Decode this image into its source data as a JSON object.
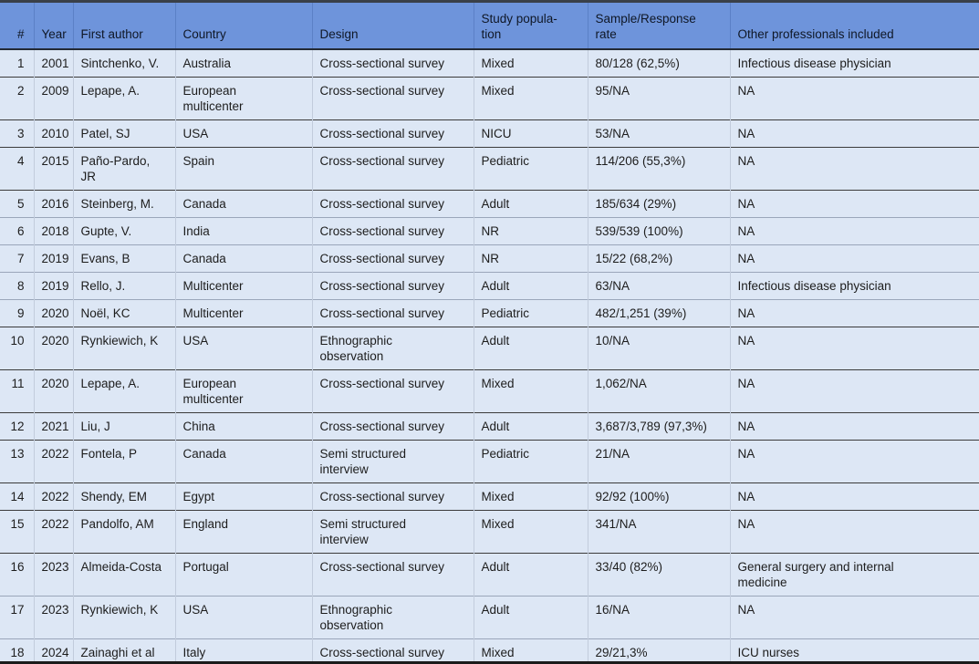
{
  "colors": {
    "header_background": "#6e94db",
    "header_text": "#0f1726",
    "header_column_divider": "#5b80c6",
    "row_background": "#dde7f5",
    "row_divider_dark": "#3b3b3b",
    "row_divider_light": "#9aa6ba",
    "body_column_divider": "#c2ccdc",
    "body_text": "#1d1d1d",
    "table_top_border": "#3a4048",
    "table_bottom_border": "#1b1b1b"
  },
  "table": {
    "columns": [
      {
        "key": "num",
        "label": "#"
      },
      {
        "key": "year",
        "label": "Year"
      },
      {
        "key": "first_author",
        "label": "First author"
      },
      {
        "key": "country",
        "label": "Country"
      },
      {
        "key": "design",
        "label": "Design"
      },
      {
        "key": "study_population",
        "label": "Study popula-\ntion"
      },
      {
        "key": "sample_response_rate",
        "label": "Sample/Response\nrate"
      },
      {
        "key": "other_professionals",
        "label": "Other professionals included"
      }
    ],
    "rows": [
      {
        "sep": "dark",
        "cells": {
          "num": "1",
          "year": "2001",
          "first_author": "Sintchenko, V.",
          "country": "Australia",
          "design": "Cross-sectional survey",
          "study_population": "Mixed",
          "sample_response_rate": "80/128 (62,5%)",
          "other_professionals": "Infectious disease physician"
        }
      },
      {
        "sep": "dark",
        "cells": {
          "num": "2",
          "year": "2009",
          "first_author": "Lepape, A.",
          "country": "European\nmulticenter",
          "design": "Cross-sectional survey",
          "study_population": "Mixed",
          "sample_response_rate": "95/NA",
          "other_professionals": "NA"
        }
      },
      {
        "sep": "dark",
        "cells": {
          "num": "3",
          "year": "2010",
          "first_author": "Patel, SJ",
          "country": "USA",
          "design": "Cross-sectional survey",
          "study_population": "NICU",
          "sample_response_rate": "53/NA",
          "other_professionals": "NA"
        }
      },
      {
        "sep": "dark",
        "cells": {
          "num": "4",
          "year": "2015",
          "first_author": "Paño-Pardo,\nJR",
          "country": "Spain",
          "design": "Cross-sectional survey",
          "study_population": "Pediatric",
          "sample_response_rate": "114/206 (55,3%)",
          "other_professionals": "NA"
        }
      },
      {
        "sep": "dark",
        "cells": {
          "num": "5",
          "year": "2016",
          "first_author": "Steinberg, M.",
          "country": "Canada",
          "design": "Cross-sectional survey",
          "study_population": "Adult",
          "sample_response_rate": "185/634 (29%)",
          "other_professionals": "NA"
        }
      },
      {
        "sep": "light",
        "cells": {
          "num": "6",
          "year": "2018",
          "first_author": "Gupte, V.",
          "country": "India",
          "design": "Cross-sectional survey",
          "study_population": "NR",
          "sample_response_rate": "539/539 (100%)",
          "other_professionals": "NA"
        }
      },
      {
        "sep": "light",
        "cells": {
          "num": "7",
          "year": "2019",
          "first_author": "Evans, B",
          "country": "Canada",
          "design": "Cross-sectional survey",
          "study_population": "NR",
          "sample_response_rate": "15/22 (68,2%)",
          "other_professionals": "NA"
        }
      },
      {
        "sep": "light",
        "cells": {
          "num": "8",
          "year": "2019",
          "first_author": "Rello, J.",
          "country": "Multicenter",
          "design": "Cross-sectional survey",
          "study_population": "Adult",
          "sample_response_rate": "63/NA",
          "other_professionals": "Infectious disease physician"
        }
      },
      {
        "sep": "light",
        "cells": {
          "num": "9",
          "year": "2020",
          "first_author": "Noël, KC",
          "country": "Multicenter",
          "design": "Cross-sectional survey",
          "study_population": "Pediatric",
          "sample_response_rate": "482/1,251 (39%)",
          "other_professionals": "NA"
        }
      },
      {
        "sep": "dark",
        "cells": {
          "num": "10",
          "year": "2020",
          "first_author": "Rynkiewich, K",
          "country": "USA",
          "design": "Ethnographic\nobservation",
          "study_population": "Adult",
          "sample_response_rate": "10/NA",
          "other_professionals": "NA"
        }
      },
      {
        "sep": "dark",
        "cells": {
          "num": "11",
          "year": "2020",
          "first_author": "Lepape, A.",
          "country": "European\nmulticenter",
          "design": "Cross-sectional survey",
          "study_population": "Mixed",
          "sample_response_rate": "1,062/NA",
          "other_professionals": "NA"
        }
      },
      {
        "sep": "dark",
        "cells": {
          "num": "12",
          "year": "2021",
          "first_author": "Liu, J",
          "country": "China",
          "design": "Cross-sectional survey",
          "study_population": "Adult",
          "sample_response_rate": "3,687/3,789 (97,3%)",
          "other_professionals": "NA"
        }
      },
      {
        "sep": "dark",
        "cells": {
          "num": "13",
          "year": "2022",
          "first_author": "Fontela, P",
          "country": "Canada",
          "design": "Semi structured\ninterview",
          "study_population": "Pediatric",
          "sample_response_rate": "21/NA",
          "other_professionals": "NA"
        }
      },
      {
        "sep": "dark",
        "cells": {
          "num": "14",
          "year": "2022",
          "first_author": "Shendy, EM",
          "country": "Egypt",
          "design": "Cross-sectional survey",
          "study_population": "Mixed",
          "sample_response_rate": "92/92 (100%)",
          "other_professionals": "NA"
        }
      },
      {
        "sep": "dark",
        "cells": {
          "num": "15",
          "year": "2022",
          "first_author": "Pandolfo, AM",
          "country": "England",
          "design": "Semi structured\ninterview",
          "study_population": "Mixed",
          "sample_response_rate": "341/NA",
          "other_professionals": "NA"
        }
      },
      {
        "sep": "dark",
        "cells": {
          "num": "16",
          "year": "2023",
          "first_author": "Almeida-Costa",
          "country": "Portugal",
          "design": "Cross-sectional survey",
          "study_population": "Adult",
          "sample_response_rate": "33/40 (82%)",
          "other_professionals": "General surgery and internal\nmedicine"
        }
      },
      {
        "sep": "light",
        "cells": {
          "num": "17",
          "year": "2023",
          "first_author": "Rynkiewich, K",
          "country": "USA",
          "design": "Ethnographic\nobservation",
          "study_population": "Adult",
          "sample_response_rate": "16/NA",
          "other_professionals": "NA"
        }
      },
      {
        "sep": "light",
        "cells": {
          "num": "18",
          "year": "2024",
          "first_author": "Zainaghi et al",
          "country": "Italy",
          "design": "Cross-sectional survey",
          "study_population": "Mixed",
          "sample_response_rate": "29/21,3%",
          "other_professionals": "ICU nurses"
        }
      }
    ]
  }
}
